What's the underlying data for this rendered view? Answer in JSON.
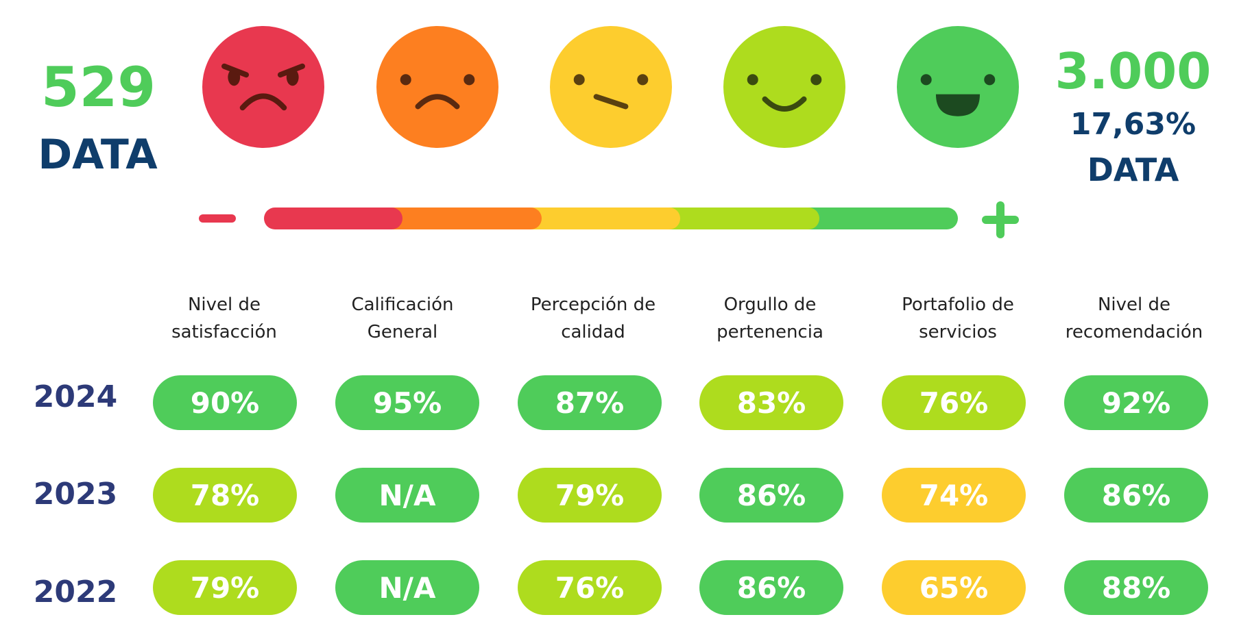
{
  "left_stat": {
    "value": "529",
    "label": "DATA"
  },
  "right_stat": {
    "value": "3.000",
    "percent": "17,63%",
    "label": "DATA"
  },
  "faces": [
    {
      "icon": "angry-face-icon",
      "color": "#e8384f"
    },
    {
      "icon": "sad-face-icon",
      "color": "#fd7f20"
    },
    {
      "icon": "neutral-face-icon",
      "color": "#fdcd2e"
    },
    {
      "icon": "smile-face-icon",
      "color": "#aedc1e"
    },
    {
      "icon": "happy-face-icon",
      "color": "#4fcc5a"
    }
  ],
  "scale": {
    "minus_symbol": "−",
    "plus_symbol": "+",
    "colors": [
      "#e8384f",
      "#fd7f20",
      "#fdcd2e",
      "#aedc1e",
      "#4fcc5a"
    ]
  },
  "columns": [
    {
      "line1": "Nivel de",
      "line2": "satisfacción"
    },
    {
      "line1": "Calificación",
      "line2": "General"
    },
    {
      "line1": "Percepción de",
      "line2": "calidad"
    },
    {
      "line1": "Orgullo de",
      "line2": "pertenencia"
    },
    {
      "line1": "Portafolio de",
      "line2": "servicios"
    },
    {
      "line1": "Nivel de",
      "line2": "recomendación"
    }
  ],
  "rows": [
    {
      "year": "2024",
      "values": [
        "90%",
        "95%",
        "87%",
        "83%",
        "76%",
        "92%"
      ],
      "colors": [
        "green",
        "green",
        "green",
        "lime",
        "lime",
        "green"
      ]
    },
    {
      "year": "2023",
      "values": [
        "78%",
        "N/A",
        "79%",
        "86%",
        "74%",
        "86%"
      ],
      "colors": [
        "lime",
        "green",
        "lime",
        "green",
        "yellow",
        "green"
      ]
    },
    {
      "year": "2022",
      "values": [
        "79%",
        "N/A",
        "76%",
        "86%",
        "65%",
        "88%"
      ],
      "colors": [
        "lime",
        "green",
        "lime",
        "green",
        "yellow",
        "green"
      ]
    }
  ],
  "palette": {
    "green": "#4fcc5a",
    "lime": "#aedc1e",
    "yellow": "#fdcd2e"
  }
}
